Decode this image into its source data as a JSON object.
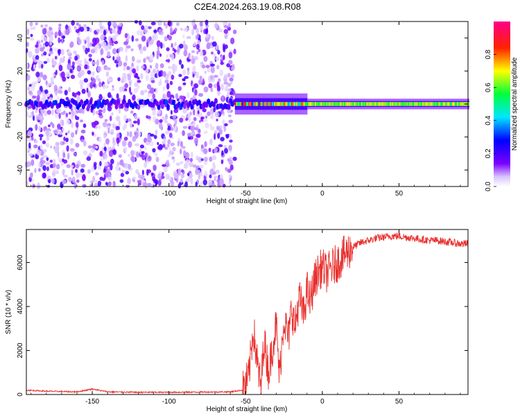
{
  "title": "C2E4.2024.263.19.08.R08",
  "chart_data": [
    {
      "type": "heatmap",
      "xlabel": "Height of straight line (km)",
      "ylabel": "Frequency (Hz)",
      "xlim": [
        -193,
        95
      ],
      "ylim": [
        -50,
        50
      ],
      "xticks": [
        -150,
        -100,
        -50,
        0,
        50
      ],
      "yticks": [
        -40,
        -20,
        0,
        20,
        40
      ],
      "colorbar": {
        "label": "Normalized spectral amplitude",
        "range": [
          0,
          1
        ],
        "ticks": [
          0.0,
          0.2,
          0.4,
          0.6,
          0.8
        ],
        "tick_labels": [
          "0.0",
          "0.2",
          "0.4",
          "0.6",
          "0.8"
        ],
        "colormap": "rainbow (white-violet-blue-cyan-green-yellow-red-magenta)"
      },
      "description_regions": [
        {
          "x_range": [
            -193,
            -57
          ],
          "frequency_range": [
            -50,
            50
          ],
          "amplitude": "low, scattered noise"
        },
        {
          "x_range": [
            -57,
            95
          ],
          "frequency_center": 0,
          "frequency_halfwidth_approx": 4,
          "amplitude": "high, narrow band near 0 Hz"
        }
      ],
      "grid": false
    },
    {
      "type": "line",
      "xlabel": "Height of straight line (km)",
      "ylabel": "SNR (10 * v/v)",
      "xlim": [
        -193,
        95
      ],
      "ylim": [
        0,
        7500
      ],
      "xticks": [
        -150,
        -100,
        -50,
        0,
        50
      ],
      "yticks": [
        0,
        2000,
        4000,
        6000
      ],
      "color": "#e8302e",
      "series": [
        {
          "x": [
            -193,
            -180,
            -160,
            -150,
            -140,
            -120,
            -100,
            -80,
            -60,
            -52,
            -48,
            -45,
            -42,
            -40,
            -38,
            -35,
            -32,
            -30,
            -28,
            -25,
            -22,
            -20,
            -18,
            -15,
            -12,
            -10,
            -8,
            -5,
            -3,
            0,
            3,
            5,
            10,
            15,
            20,
            25,
            30,
            35,
            40,
            45,
            50,
            55,
            60,
            65,
            70,
            75,
            80,
            85,
            90,
            95
          ],
          "y": [
            200,
            150,
            120,
            250,
            120,
            100,
            100,
            110,
            120,
            200,
            800,
            3000,
            1200,
            300,
            2500,
            1000,
            2400,
            3200,
            800,
            3500,
            2500,
            4000,
            3000,
            4400,
            3600,
            4800,
            4200,
            5200,
            5500,
            5800,
            5500,
            5700,
            6000,
            6400,
            6700,
            6900,
            7000,
            7100,
            7150,
            7200,
            7200,
            7150,
            7100,
            7050,
            7000,
            7000,
            6950,
            6900,
            6850,
            6850
          ]
        }
      ],
      "grid": false
    }
  ]
}
